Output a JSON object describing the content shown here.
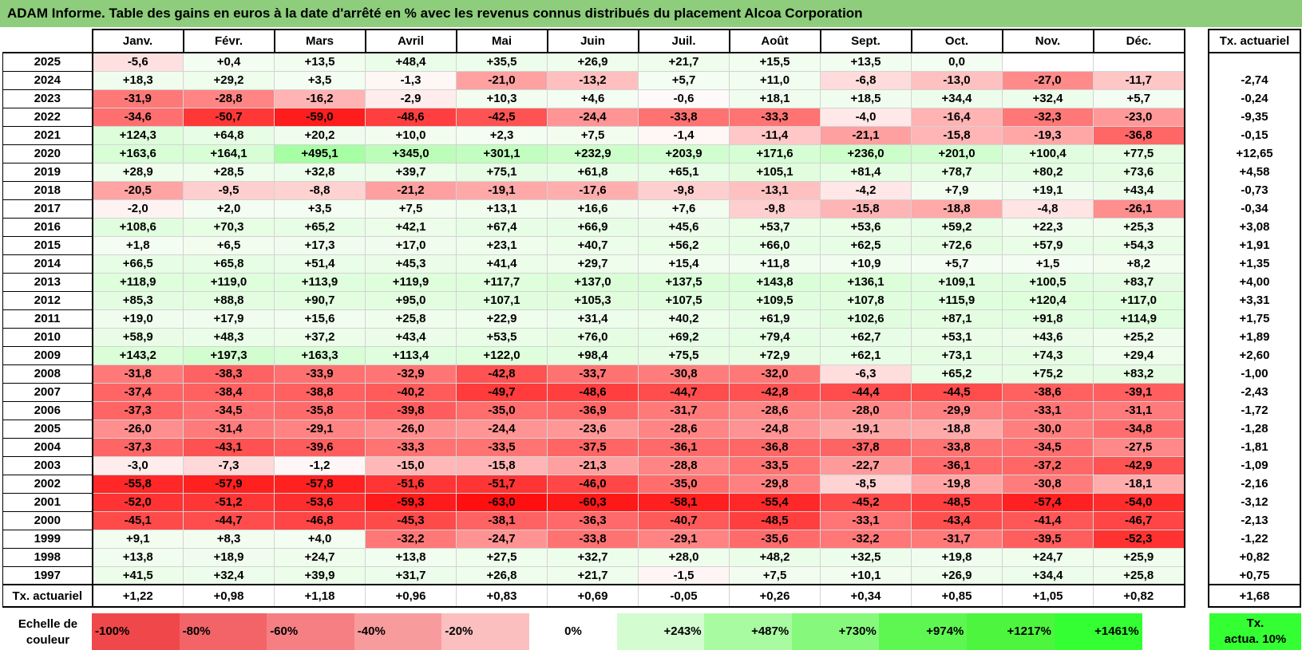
{
  "title": "ADAM Informe. Table des gains en euros à la date d'arrêté en % avec les revenus connus distribués du placement Alcoa Corporation",
  "chart_data": {
    "type": "table",
    "title": "ADAM Informe. Table des gains en euros à la date d'arrêté en % avec les revenus connus distribués du placement Alcoa Corporation",
    "months": [
      "Janv.",
      "Févr.",
      "Mars",
      "Avril",
      "Mai",
      "Juin",
      "Juil.",
      "Août",
      "Sept.",
      "Oct.",
      "Nov.",
      "Déc."
    ],
    "rate_header": "Tx. actuariel",
    "rows": [
      {
        "year": "2025",
        "values": [
          "-5,6",
          "+0,4",
          "+13,5",
          "+48,4",
          "+35,5",
          "+26,9",
          "+21,7",
          "+15,5",
          "+13,5",
          "0,0",
          "",
          ""
        ],
        "rate": ""
      },
      {
        "year": "2024",
        "values": [
          "+18,3",
          "+29,2",
          "+3,5",
          "-1,3",
          "-21,0",
          "-13,2",
          "+5,7",
          "+11,0",
          "-6,8",
          "-13,0",
          "-27,0",
          "-11,7"
        ],
        "rate": "-2,74"
      },
      {
        "year": "2023",
        "values": [
          "-31,9",
          "-28,8",
          "-16,2",
          "-2,9",
          "+10,3",
          "+4,6",
          "-0,6",
          "+18,1",
          "+18,5",
          "+34,4",
          "+32,4",
          "+5,7"
        ],
        "rate": "-0,24"
      },
      {
        "year": "2022",
        "values": [
          "-34,6",
          "-50,7",
          "-59,0",
          "-48,6",
          "-42,5",
          "-24,4",
          "-33,8",
          "-33,3",
          "-4,0",
          "-16,4",
          "-32,3",
          "-23,0"
        ],
        "rate": "-9,35"
      },
      {
        "year": "2021",
        "values": [
          "+124,3",
          "+64,8",
          "+20,2",
          "+10,0",
          "+2,3",
          "+7,5",
          "-1,4",
          "-11,4",
          "-21,1",
          "-15,8",
          "-19,3",
          "-36,8"
        ],
        "rate": "-0,15"
      },
      {
        "year": "2020",
        "values": [
          "+163,6",
          "+164,1",
          "+495,1",
          "+345,0",
          "+301,1",
          "+232,9",
          "+203,9",
          "+171,6",
          "+236,0",
          "+201,0",
          "+100,4",
          "+77,5"
        ],
        "rate": "+12,65"
      },
      {
        "year": "2019",
        "values": [
          "+28,9",
          "+28,5",
          "+32,8",
          "+39,7",
          "+75,1",
          "+61,8",
          "+65,1",
          "+105,1",
          "+81,4",
          "+78,7",
          "+80,2",
          "+73,6"
        ],
        "rate": "+4,58"
      },
      {
        "year": "2018",
        "values": [
          "-20,5",
          "-9,5",
          "-8,8",
          "-21,2",
          "-19,1",
          "-17,6",
          "-9,8",
          "-13,1",
          "-4,2",
          "+7,9",
          "+19,1",
          "+43,4"
        ],
        "rate": "-0,73"
      },
      {
        "year": "2017",
        "values": [
          "-2,0",
          "+2,0",
          "+3,5",
          "+7,5",
          "+13,1",
          "+16,6",
          "+7,6",
          "-9,8",
          "-15,8",
          "-18,8",
          "-4,8",
          "-26,1"
        ],
        "rate": "-0,34"
      },
      {
        "year": "2016",
        "values": [
          "+108,6",
          "+70,3",
          "+65,2",
          "+42,1",
          "+67,4",
          "+66,9",
          "+45,6",
          "+53,7",
          "+53,6",
          "+59,2",
          "+22,3",
          "+25,3"
        ],
        "rate": "+3,08"
      },
      {
        "year": "2015",
        "values": [
          "+1,8",
          "+6,5",
          "+17,3",
          "+17,0",
          "+23,1",
          "+40,7",
          "+56,2",
          "+66,0",
          "+62,5",
          "+72,6",
          "+57,9",
          "+54,3"
        ],
        "rate": "+1,91"
      },
      {
        "year": "2014",
        "values": [
          "+66,5",
          "+65,8",
          "+51,4",
          "+45,3",
          "+41,4",
          "+29,7",
          "+15,4",
          "+11,8",
          "+10,9",
          "+5,7",
          "+1,5",
          "+8,2"
        ],
        "rate": "+1,35"
      },
      {
        "year": "2013",
        "values": [
          "+118,9",
          "+119,0",
          "+113,9",
          "+119,9",
          "+117,7",
          "+137,0",
          "+137,5",
          "+143,8",
          "+136,1",
          "+109,1",
          "+100,5",
          "+83,7"
        ],
        "rate": "+4,00"
      },
      {
        "year": "2012",
        "values": [
          "+85,3",
          "+88,8",
          "+90,7",
          "+95,0",
          "+107,1",
          "+105,3",
          "+107,5",
          "+109,5",
          "+107,8",
          "+115,9",
          "+120,4",
          "+117,0"
        ],
        "rate": "+3,31"
      },
      {
        "year": "2011",
        "values": [
          "+19,0",
          "+17,9",
          "+15,6",
          "+25,8",
          "+22,9",
          "+31,4",
          "+40,2",
          "+61,9",
          "+102,6",
          "+87,1",
          "+91,8",
          "+114,9"
        ],
        "rate": "+1,75"
      },
      {
        "year": "2010",
        "values": [
          "+58,9",
          "+48,3",
          "+37,2",
          "+43,4",
          "+53,5",
          "+76,0",
          "+69,2",
          "+79,4",
          "+62,7",
          "+53,1",
          "+43,6",
          "+25,2"
        ],
        "rate": "+1,89"
      },
      {
        "year": "2009",
        "values": [
          "+143,2",
          "+197,3",
          "+163,3",
          "+113,4",
          "+122,0",
          "+98,4",
          "+75,5",
          "+72,9",
          "+62,1",
          "+73,1",
          "+74,3",
          "+29,4"
        ],
        "rate": "+2,60"
      },
      {
        "year": "2008",
        "values": [
          "-31,8",
          "-38,3",
          "-33,9",
          "-32,9",
          "-42,8",
          "-33,7",
          "-30,8",
          "-32,0",
          "-6,3",
          "+65,2",
          "+75,2",
          "+83,2"
        ],
        "rate": "-1,00"
      },
      {
        "year": "2007",
        "values": [
          "-37,4",
          "-38,4",
          "-38,8",
          "-40,2",
          "-49,7",
          "-48,6",
          "-44,7",
          "-42,8",
          "-44,4",
          "-44,5",
          "-38,6",
          "-39,1"
        ],
        "rate": "-2,43"
      },
      {
        "year": "2006",
        "values": [
          "-37,3",
          "-34,5",
          "-35,8",
          "-39,8",
          "-35,0",
          "-36,9",
          "-31,7",
          "-28,6",
          "-28,0",
          "-29,9",
          "-33,1",
          "-31,1"
        ],
        "rate": "-1,72"
      },
      {
        "year": "2005",
        "values": [
          "-26,0",
          "-31,4",
          "-29,1",
          "-26,0",
          "-24,4",
          "-23,6",
          "-28,6",
          "-24,8",
          "-19,1",
          "-18,8",
          "-30,0",
          "-34,8"
        ],
        "rate": "-1,28"
      },
      {
        "year": "2004",
        "values": [
          "-37,3",
          "-43,1",
          "-39,6",
          "-33,3",
          "-33,5",
          "-37,5",
          "-36,1",
          "-36,8",
          "-37,8",
          "-33,8",
          "-34,5",
          "-27,5"
        ],
        "rate": "-1,81"
      },
      {
        "year": "2003",
        "values": [
          "-3,0",
          "-7,3",
          "-1,2",
          "-15,0",
          "-15,8",
          "-21,3",
          "-28,8",
          "-33,5",
          "-22,7",
          "-36,1",
          "-37,2",
          "-42,9"
        ],
        "rate": "-1,09"
      },
      {
        "year": "2002",
        "values": [
          "-55,8",
          "-57,9",
          "-57,8",
          "-51,6",
          "-51,7",
          "-46,0",
          "-35,0",
          "-29,8",
          "-8,5",
          "-19,8",
          "-30,8",
          "-18,1"
        ],
        "rate": "-2,16"
      },
      {
        "year": "2001",
        "values": [
          "-52,0",
          "-51,2",
          "-53,6",
          "-59,3",
          "-63,0",
          "-60,3",
          "-58,1",
          "-55,4",
          "-45,2",
          "-48,5",
          "-57,4",
          "-54,0"
        ],
        "rate": "-3,12"
      },
      {
        "year": "2000",
        "values": [
          "-45,1",
          "-44,7",
          "-46,8",
          "-45,3",
          "-38,1",
          "-36,3",
          "-40,7",
          "-48,5",
          "-33,1",
          "-43,4",
          "-41,4",
          "-46,7"
        ],
        "rate": "-2,13"
      },
      {
        "year": "1999",
        "values": [
          "+9,1",
          "+8,3",
          "+4,0",
          "-32,2",
          "-24,7",
          "-33,8",
          "-29,1",
          "-35,6",
          "-32,2",
          "-31,7",
          "-39,5",
          "-52,3"
        ],
        "rate": "-1,22"
      },
      {
        "year": "1998",
        "values": [
          "+13,8",
          "+18,9",
          "+24,7",
          "+13,8",
          "+27,5",
          "+32,7",
          "+28,0",
          "+48,2",
          "+32,5",
          "+19,8",
          "+24,7",
          "+25,9"
        ],
        "rate": "+0,82"
      },
      {
        "year": "1997",
        "values": [
          "+41,5",
          "+32,4",
          "+39,9",
          "+31,7",
          "+26,8",
          "+21,7",
          "-1,5",
          "+7,5",
          "+10,1",
          "+26,9",
          "+34,4",
          "+25,8"
        ],
        "rate": "+0,75"
      }
    ],
    "total_row": {
      "label": "Tx. actuariel",
      "values": [
        "+1,22",
        "+0,98",
        "+1,18",
        "+0,96",
        "+0,83",
        "+0,69",
        "-0,05",
        "+0,26",
        "+0,34",
        "+0,85",
        "+1,05",
        "+0,82"
      ],
      "rate": "+1,68"
    },
    "scale": {
      "label_line1": "Echelle de",
      "label_line2": "couleur",
      "steps": [
        {
          "label": "-100%",
          "color": "#f0474b"
        },
        {
          "label": "-80%",
          "color": "#f26468"
        },
        {
          "label": "-60%",
          "color": "#f57f82"
        },
        {
          "label": "-40%",
          "color": "#f89b9d"
        },
        {
          "label": "-20%",
          "color": "#fbbfc0"
        },
        {
          "label": "0%",
          "color": "#ffffff"
        },
        {
          "label": "+243%",
          "color": "#d3fdd0"
        },
        {
          "label": "+487%",
          "color": "#a9fba2"
        },
        {
          "label": "+730%",
          "color": "#86f97c"
        },
        {
          "label": "+974%",
          "color": "#5ef752"
        },
        {
          "label": "+1217%",
          "color": "#4df53f"
        },
        {
          "label": "+1461%",
          "color": "#33ff33"
        }
      ],
      "side_line1": "Tx.",
      "side_line2": "actua. 10%",
      "side_color": "#33ff33"
    }
  }
}
